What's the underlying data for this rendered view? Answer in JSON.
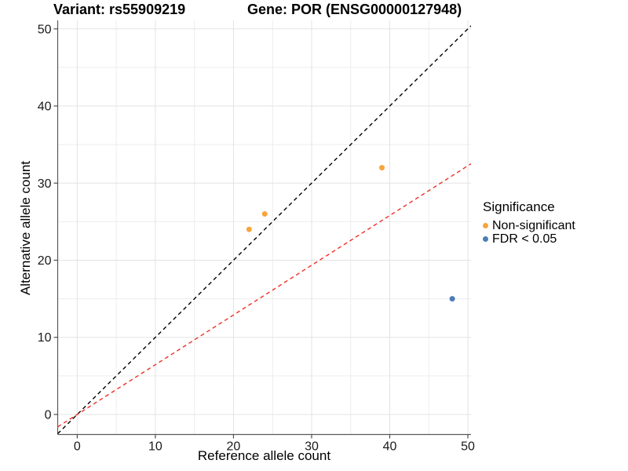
{
  "title": {
    "variant": "Variant: rs55909219",
    "gene": "Gene: POR (ENSG00000127948)"
  },
  "axes": {
    "x_label": "Reference allele count",
    "y_label": "Alternative allele count"
  },
  "legend": {
    "title": "Significance",
    "items": [
      {
        "label": "Non-significant",
        "color": "#F7A53C"
      },
      {
        "label": "FDR < 0.05",
        "color": "#4D7CB8"
      }
    ]
  },
  "chart_data": {
    "type": "scatter",
    "title": "Variant: rs55909219    Gene: POR (ENSG00000127948)",
    "xlabel": "Reference allele count",
    "ylabel": "Alternative allele count",
    "xlim": [
      -2.5,
      50.4
    ],
    "ylim": [
      -2.6,
      51.1
    ],
    "x_ticks": [
      0,
      10,
      20,
      30,
      40,
      50
    ],
    "y_ticks": [
      0,
      10,
      20,
      30,
      40,
      50
    ],
    "minor_ticks": [
      5,
      15,
      25,
      35,
      45
    ],
    "grid": "major and minor gridlines every 5 units, light gray on white",
    "legend_title": "Significance",
    "legend_position": "right",
    "series": [
      {
        "name": "Non-significant",
        "color": "#F7A53C",
        "points": [
          {
            "x": 22,
            "y": 24
          },
          {
            "x": 24,
            "y": 26
          },
          {
            "x": 39,
            "y": 32
          }
        ]
      },
      {
        "name": "FDR < 0.05",
        "color": "#4D7CB8",
        "points": [
          {
            "x": 48,
            "y": 15
          }
        ]
      }
    ],
    "lines": [
      {
        "name": "identity-line",
        "slope": 1,
        "intercept": 0,
        "color": "#000000",
        "style": "dashed"
      },
      {
        "name": "expected-ratio-line",
        "slope": 0.645,
        "intercept": 0,
        "color": "#EF2F26",
        "style": "dashed"
      }
    ]
  },
  "style": {
    "grid_major_color": "#e3e3e3",
    "grid_minor_color": "#ededed",
    "axis_line_color": "#5a5a5a",
    "tick_color": "#4d4d4d",
    "tick_label_color": "#1a1a1a",
    "point_radius": 3.5
  }
}
